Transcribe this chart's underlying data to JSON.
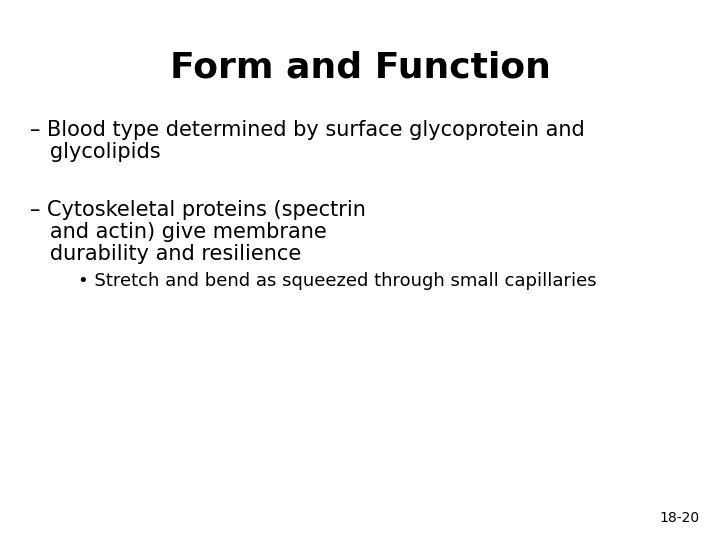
{
  "title": "Form and Function",
  "title_fontsize": 26,
  "title_fontweight": "bold",
  "background_color": "#ffffff",
  "text_color": "#000000",
  "bullet1_line1": "– Blood type determined by surface glycoprotein and",
  "bullet1_line2": "   glycolipids",
  "bullet2_line1": "– Cytoskeletal proteins (spectrin",
  "bullet2_line2": "   and actin) give membrane",
  "bullet2_line3": "   durability and resilience",
  "sub_bullet": "    • Stretch and bend as squeezed through small capillaries",
  "bullet_fontsize": 15,
  "sub_bullet_fontsize": 13,
  "page_num": "18-20",
  "page_num_fontsize": 10
}
